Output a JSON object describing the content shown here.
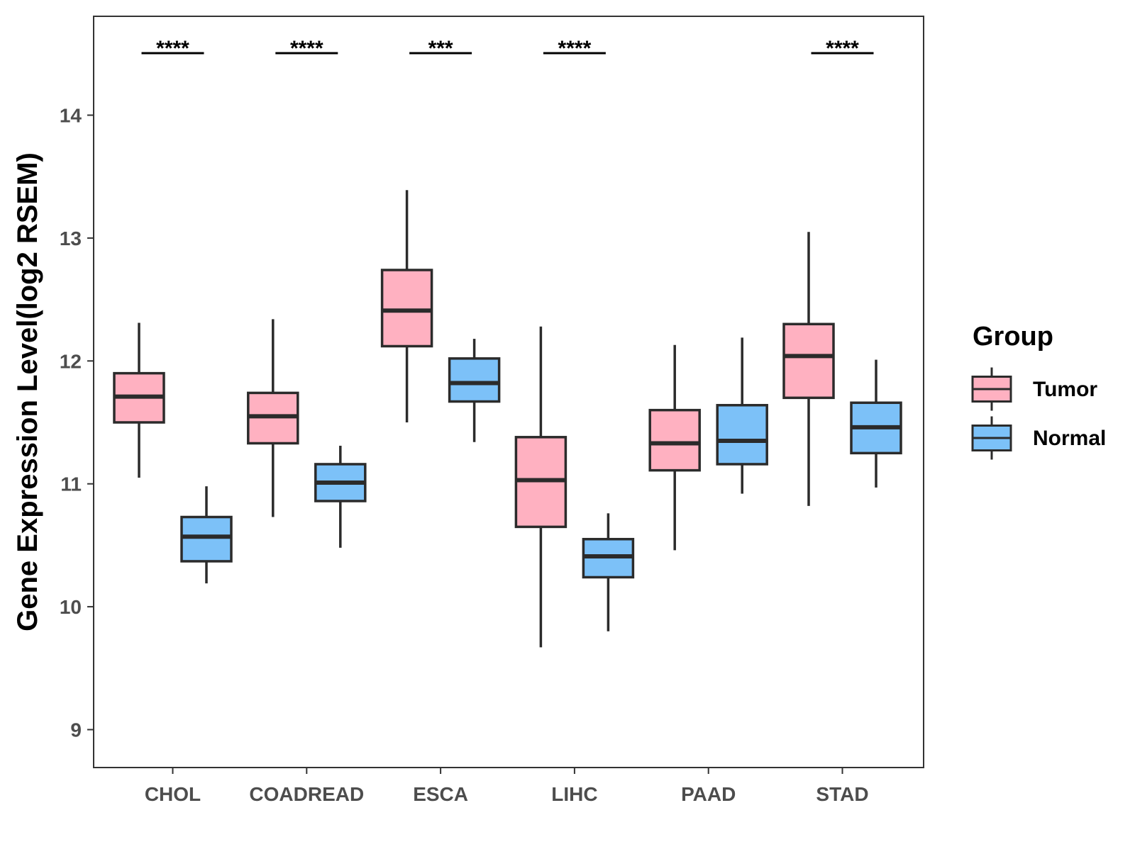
{
  "chart_data": {
    "type": "boxplot",
    "title": "",
    "xlabel": "",
    "ylabel": "Gene Expression Level(log2 RSEM)",
    "ylim": [
      8.7,
      14.8
    ],
    "yticks": [
      9,
      10,
      11,
      12,
      13,
      14
    ],
    "grid": false,
    "legend": {
      "title": "Group",
      "position": "right",
      "entries": [
        "Tumor",
        "Normal"
      ]
    },
    "categories": [
      "CHOL",
      "COADREAD",
      "ESCA",
      "LIHC",
      "PAAD",
      "STAD"
    ],
    "series": [
      {
        "name": "Tumor",
        "color": "#FFB1C1",
        "boxes": [
          {
            "min": 11.05,
            "q1": 11.5,
            "median": 11.71,
            "q3": 11.9,
            "max": 12.31
          },
          {
            "min": 10.73,
            "q1": 11.33,
            "median": 11.55,
            "q3": 11.74,
            "max": 12.34
          },
          {
            "min": 11.5,
            "q1": 12.12,
            "median": 12.41,
            "q3": 12.74,
            "max": 13.39
          },
          {
            "min": 9.67,
            "q1": 10.65,
            "median": 11.03,
            "q3": 11.38,
            "max": 12.28
          },
          {
            "min": 10.46,
            "q1": 11.11,
            "median": 11.33,
            "q3": 11.6,
            "max": 12.13
          },
          {
            "min": 10.82,
            "q1": 11.7,
            "median": 12.04,
            "q3": 12.3,
            "max": 13.05
          }
        ]
      },
      {
        "name": "Normal",
        "color": "#7CC1F8",
        "boxes": [
          {
            "min": 10.19,
            "q1": 10.37,
            "median": 10.57,
            "q3": 10.73,
            "max": 10.98
          },
          {
            "min": 10.48,
            "q1": 10.86,
            "median": 11.01,
            "q3": 11.16,
            "max": 11.31
          },
          {
            "min": 11.34,
            "q1": 11.67,
            "median": 11.82,
            "q3": 12.02,
            "max": 12.18
          },
          {
            "min": 9.8,
            "q1": 10.24,
            "median": 10.41,
            "q3": 10.55,
            "max": 10.76
          },
          {
            "min": 10.92,
            "q1": 11.16,
            "median": 11.35,
            "q3": 11.64,
            "max": 12.19
          },
          {
            "min": 10.97,
            "q1": 11.25,
            "median": 11.46,
            "q3": 11.66,
            "max": 12.01
          }
        ]
      }
    ],
    "significance": [
      "****",
      "****",
      "***",
      "****",
      "",
      "****"
    ]
  }
}
